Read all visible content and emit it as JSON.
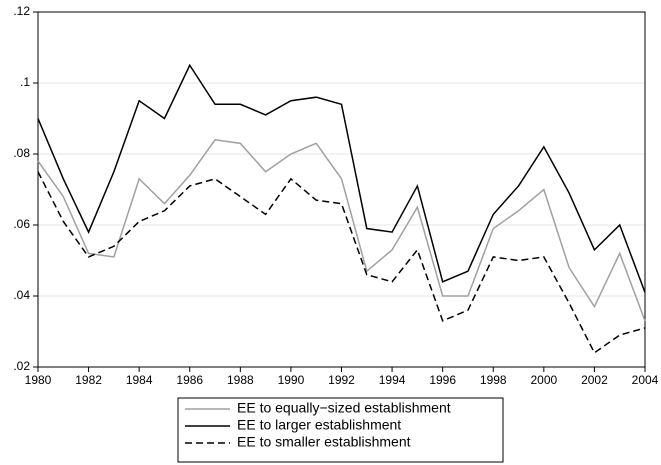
{
  "chart_data": {
    "type": "line",
    "x": [
      1980,
      1981,
      1982,
      1983,
      1984,
      1985,
      1986,
      1987,
      1988,
      1989,
      1990,
      1991,
      1992,
      1993,
      1994,
      1995,
      1996,
      1997,
      1998,
      1999,
      2000,
      2001,
      2002,
      2003,
      2004
    ],
    "xlim": [
      1980,
      2004
    ],
    "xticks": [
      1980,
      1982,
      1984,
      1986,
      1988,
      1990,
      1992,
      1994,
      1996,
      1998,
      2000,
      2002,
      2004
    ],
    "ylim": [
      0.02,
      0.12
    ],
    "yticks": [
      {
        "value": 0.02,
        "label": ".02"
      },
      {
        "value": 0.04,
        "label": ".04"
      },
      {
        "value": 0.06,
        "label": ".06"
      },
      {
        "value": 0.08,
        "label": ".08"
      },
      {
        "value": 0.1,
        "label": ".1"
      },
      {
        "value": 0.12,
        "label": ".12"
      }
    ],
    "grid": true,
    "legend": "bottom",
    "series": [
      {
        "name": "EE to equally−sized establishment",
        "color": "#a0a0a0",
        "style": "solid",
        "values": [
          0.078,
          0.068,
          0.052,
          0.051,
          0.073,
          0.066,
          0.074,
          0.084,
          0.083,
          0.075,
          0.08,
          0.083,
          0.073,
          0.047,
          0.053,
          0.065,
          0.04,
          0.04,
          0.059,
          0.064,
          0.07,
          0.048,
          0.037,
          0.052,
          0.033
        ]
      },
      {
        "name": "EE to larger establishment",
        "color": "#000000",
        "style": "solid",
        "values": [
          0.09,
          0.073,
          0.058,
          0.075,
          0.095,
          0.09,
          0.105,
          0.094,
          0.094,
          0.091,
          0.095,
          0.096,
          0.094,
          0.059,
          0.058,
          0.071,
          0.044,
          0.047,
          0.063,
          0.071,
          0.082,
          0.069,
          0.053,
          0.06,
          0.041
        ]
      },
      {
        "name": "EE to smaller establishment",
        "color": "#000000",
        "style": "dashed",
        "values": [
          0.075,
          0.061,
          0.051,
          0.054,
          0.061,
          0.064,
          0.071,
          0.073,
          0.068,
          0.063,
          0.073,
          0.067,
          0.066,
          0.046,
          0.044,
          0.053,
          0.033,
          0.036,
          0.051,
          0.05,
          0.051,
          0.038,
          0.024,
          0.029,
          0.031
        ]
      }
    ]
  }
}
